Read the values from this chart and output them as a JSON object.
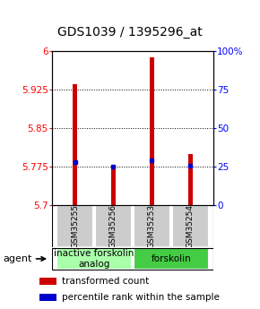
{
  "title": "GDS1039 / 1395296_at",
  "samples": [
    "GSM35255",
    "GSM35256",
    "GSM35253",
    "GSM35254"
  ],
  "red_values": [
    5.935,
    5.775,
    5.988,
    5.8
  ],
  "blue_values": [
    5.784,
    5.775,
    5.788,
    5.777
  ],
  "ylim_left": [
    5.7,
    6.0
  ],
  "yticks_left": [
    5.7,
    5.775,
    5.85,
    5.925,
    6.0
  ],
  "ytick_labels_left": [
    "5.7",
    "5.775",
    "5.85",
    "5.925",
    "6"
  ],
  "ylim_right": [
    0,
    100
  ],
  "yticks_right": [
    0,
    25,
    50,
    75,
    100
  ],
  "ytick_labels_right": [
    "0",
    "25",
    "50",
    "75",
    "100%"
  ],
  "ybase": 5.7,
  "groups": [
    {
      "label": "inactive forskolin\nanalog",
      "samples": [
        0,
        1
      ],
      "color": "#aaffaa"
    },
    {
      "label": "forskolin",
      "samples": [
        2,
        3
      ],
      "color": "#44cc44"
    }
  ],
  "bar_width": 0.12,
  "red_color": "#cc0000",
  "blue_color": "#0000cc",
  "sample_box_color": "#cccccc",
  "legend_red": "transformed count",
  "legend_blue": "percentile rank within the sample",
  "agent_label": "agent",
  "title_fontsize": 10,
  "tick_fontsize": 7.5,
  "sample_fontsize": 6.5,
  "group_fontsize": 7.5,
  "legend_fontsize": 7.5
}
